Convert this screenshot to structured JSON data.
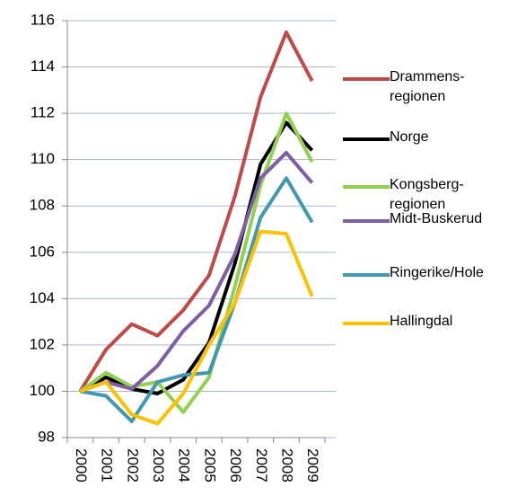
{
  "chart_data": {
    "type": "line",
    "categories": [
      "2000",
      "2001",
      "2002",
      "2003",
      "2004",
      "2005",
      "2006",
      "2007",
      "2008",
      "2009"
    ],
    "series": [
      {
        "name": "Drammens-regionen",
        "color": "#be4b48",
        "values": [
          100,
          101.8,
          102.9,
          102.4,
          103.5,
          105.0,
          108.4,
          112.7,
          115.5,
          113.4
        ]
      },
      {
        "name": "Norge",
        "color": "#000000",
        "values": [
          100,
          100.6,
          100.1,
          99.9,
          100.5,
          102.1,
          105.5,
          109.8,
          111.6,
          110.4
        ]
      },
      {
        "name": "Kongsberg-regionen",
        "color": "#92d050",
        "values": [
          100,
          100.8,
          100.2,
          100.4,
          99.1,
          100.6,
          104.5,
          108.9,
          112.0,
          109.9
        ]
      },
      {
        "name": "Midt-Buskerud",
        "color": "#7f5fa3",
        "values": [
          100,
          100.4,
          100.1,
          101.1,
          102.6,
          103.7,
          105.9,
          109.2,
          110.3,
          109.0
        ]
      },
      {
        "name": "Ringerike/Hole",
        "color": "#4198af",
        "values": [
          100,
          99.8,
          98.7,
          100.4,
          100.7,
          100.8,
          103.8,
          107.5,
          109.2,
          107.3
        ]
      },
      {
        "name": "Hallingdal",
        "color": "#ffc000",
        "values": [
          100,
          100.4,
          99.0,
          98.6,
          99.9,
          102.0,
          103.8,
          106.9,
          106.8,
          104.1
        ]
      }
    ],
    "ylim": [
      98,
      116
    ],
    "yticks": [
      98,
      100,
      102,
      104,
      106,
      108,
      110,
      112,
      114,
      116
    ],
    "grid": true
  }
}
